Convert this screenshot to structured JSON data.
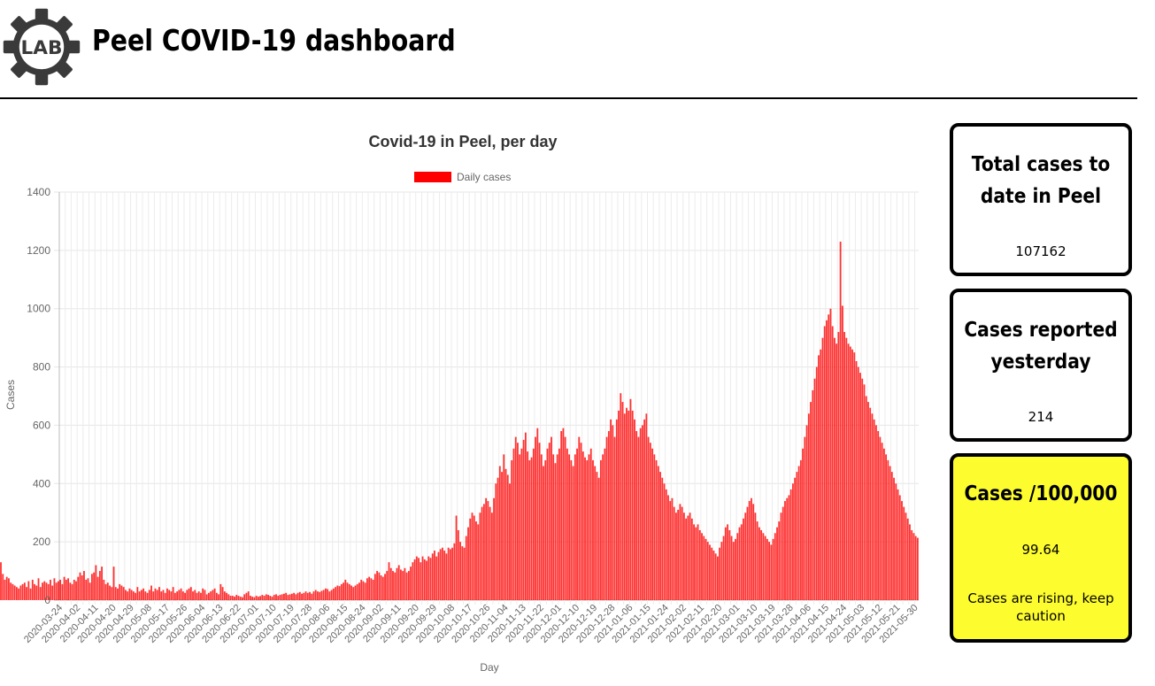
{
  "header": {
    "logo_text": "LAB",
    "title": "Peel COVID-19 dashboard"
  },
  "cards": {
    "total": {
      "title": "Total cases to date in Peel",
      "value": "107162"
    },
    "yesterday": {
      "title": "Cases reported yesterday",
      "value": "214"
    },
    "per100k": {
      "title": "Cases /100,000",
      "value": "99.64",
      "note": "Cases are rising, keep caution",
      "background": "#fdfc2f"
    }
  },
  "chart_data": {
    "type": "bar",
    "title": "Covid-19 in Peel, per day",
    "xlabel": "Day",
    "ylabel": "Cases",
    "ylim": [
      0,
      1400
    ],
    "yticks": [
      0,
      200,
      400,
      600,
      800,
      1000,
      1200,
      1400
    ],
    "grid": true,
    "legend_position": "top-center",
    "series": [
      {
        "name": "Daily cases",
        "color": "#ff0000"
      }
    ],
    "start_date": "2020-03-24",
    "end_date": "2021-05-31",
    "xtick_labels": [
      "2020-03-24",
      "2020-04-02",
      "2020-04-11",
      "2020-04-20",
      "2020-04-29",
      "2020-05-08",
      "2020-05-17",
      "2020-05-26",
      "2020-06-04",
      "2020-06-13",
      "2020-06-22",
      "2020-07-01",
      "2020-07-10",
      "2020-07-19",
      "2020-07-28",
      "2020-08-06",
      "2020-08-15",
      "2020-08-24",
      "2020-09-02",
      "2020-09-11",
      "2020-09-20",
      "2020-09-29",
      "2020-10-08",
      "2020-10-17",
      "2020-10-26",
      "2020-11-04",
      "2020-11-13",
      "2020-11-22",
      "2020-12-01",
      "2020-12-10",
      "2020-12-19",
      "2020-12-28",
      "2021-01-06",
      "2021-01-15",
      "2021-01-24",
      "2021-02-02",
      "2021-02-11",
      "2021-02-20",
      "2021-03-01",
      "2021-03-10",
      "2021-03-19",
      "2021-03-28",
      "2021-04-06",
      "2021-04-15",
      "2021-04-24",
      "2021-05-03",
      "2021-05-12",
      "2021-05-21",
      "2021-05-30"
    ],
    "values": [
      5,
      8,
      12,
      15,
      18,
      95,
      35,
      60,
      115,
      45,
      30,
      70,
      55,
      40,
      85,
      60,
      75,
      50,
      65,
      70,
      60,
      55,
      75,
      70,
      65,
      70,
      80,
      90,
      185,
      130,
      90,
      70,
      80,
      75,
      60,
      55,
      50,
      45,
      40,
      50,
      55,
      60,
      45,
      65,
      40,
      70,
      55,
      50,
      75,
      45,
      60,
      65,
      60,
      55,
      70,
      50,
      75,
      60,
      65,
      70,
      55,
      80,
      70,
      75,
      60,
      55,
      70,
      65,
      80,
      95,
      85,
      100,
      70,
      75,
      60,
      90,
      95,
      120,
      80,
      100,
      115,
      70,
      55,
      60,
      50,
      45,
      115,
      45,
      40,
      55,
      50,
      45,
      35,
      30,
      40,
      35,
      30,
      25,
      45,
      30,
      35,
      40,
      30,
      25,
      35,
      50,
      30,
      40,
      35,
      45,
      30,
      35,
      25,
      40,
      35,
      30,
      45,
      25,
      30,
      35,
      40,
      30,
      25,
      35,
      40,
      45,
      30,
      35,
      25,
      30,
      25,
      40,
      35,
      20,
      25,
      30,
      35,
      40,
      25,
      20,
      55,
      45,
      30,
      25,
      20,
      15,
      15,
      12,
      18,
      15,
      12,
      10,
      20,
      25,
      30,
      15,
      12,
      10,
      15,
      12,
      14,
      18,
      15,
      20,
      18,
      15,
      12,
      18,
      20,
      15,
      18,
      20,
      22,
      25,
      18,
      20,
      22,
      25,
      20,
      25,
      28,
      22,
      25,
      30,
      25,
      28,
      22,
      30,
      35,
      30,
      28,
      32,
      35,
      40,
      38,
      30,
      35,
      40,
      45,
      50,
      48,
      55,
      60,
      70,
      60,
      55,
      50,
      45,
      50,
      55,
      60,
      70,
      65,
      60,
      75,
      80,
      75,
      70,
      90,
      100,
      95,
      85,
      80,
      90,
      100,
      130,
      110,
      100,
      95,
      110,
      120,
      105,
      100,
      110,
      95,
      100,
      115,
      130,
      140,
      150,
      145,
      130,
      150,
      140,
      135,
      150,
      145,
      160,
      170,
      150,
      165,
      175,
      180,
      170,
      160,
      180,
      175,
      180,
      195,
      290,
      240,
      200,
      185,
      180,
      220,
      250,
      280,
      300,
      290,
      270,
      260,
      300,
      320,
      330,
      350,
      340,
      320,
      300,
      350,
      400,
      420,
      460,
      440,
      500,
      450,
      430,
      400,
      480,
      520,
      560,
      540,
      500,
      520,
      550,
      575,
      510,
      480,
      490,
      520,
      560,
      590,
      540,
      500,
      460,
      480,
      520,
      540,
      560,
      500,
      470,
      500,
      520,
      580,
      590,
      560,
      520,
      500,
      480,
      460,
      500,
      520,
      560,
      540,
      510,
      490,
      480,
      500,
      520,
      480,
      460,
      440,
      420,
      480,
      500,
      520,
      560,
      580,
      620,
      600,
      560,
      620,
      650,
      710,
      680,
      640,
      660,
      650,
      690,
      650,
      620,
      580,
      560,
      590,
      600,
      620,
      640,
      560,
      540,
      520,
      500,
      480,
      460,
      440,
      420,
      400,
      380,
      360,
      340,
      350,
      320,
      300,
      310,
      330,
      320,
      300,
      280,
      290,
      300,
      280,
      260,
      250,
      260,
      240,
      230,
      220,
      210,
      200,
      190,
      180,
      170,
      160,
      150,
      180,
      200,
      220,
      250,
      260,
      240,
      220,
      200,
      210,
      230,
      250,
      260,
      280,
      300,
      320,
      340,
      350,
      330,
      300,
      270,
      250,
      240,
      230,
      220,
      210,
      200,
      190,
      210,
      230,
      250,
      270,
      300,
      320,
      340,
      350,
      360,
      380,
      400,
      420,
      440,
      460,
      480,
      520,
      560,
      600,
      640,
      680,
      720,
      760,
      800,
      840,
      860,
      900,
      940,
      960,
      980,
      1000,
      940,
      900,
      880,
      920,
      1230,
      1010,
      920,
      900,
      880,
      870,
      860,
      850,
      820,
      800,
      780,
      760,
      740,
      700,
      680,
      660,
      640,
      620,
      600,
      580,
      560,
      540,
      520,
      500,
      480,
      460,
      440,
      420,
      400,
      380,
      360,
      340,
      320,
      300,
      280,
      260,
      240,
      230,
      220,
      214
    ]
  }
}
